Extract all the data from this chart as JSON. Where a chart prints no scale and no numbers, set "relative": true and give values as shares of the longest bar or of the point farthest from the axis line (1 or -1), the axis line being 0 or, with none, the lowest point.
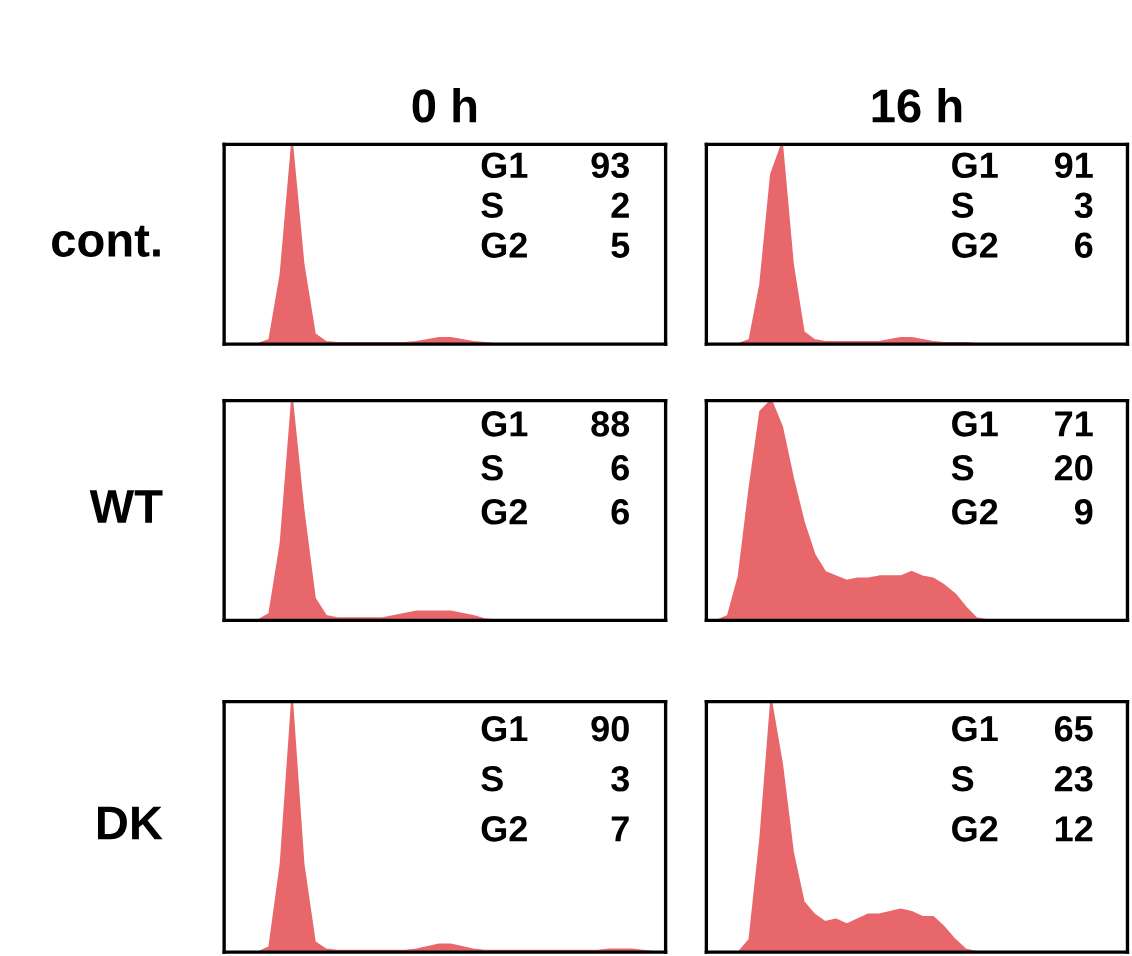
{
  "chart_data": [
    {
      "type": "area",
      "relative": true,
      "title": "0 h",
      "ylabel": "cont.",
      "color": "#e8676b",
      "categories": [
        null,
        null,
        null,
        null,
        null,
        null,
        null,
        null,
        null,
        null,
        null,
        null,
        null,
        null,
        null,
        null,
        null,
        null,
        null,
        null,
        null,
        null,
        null,
        null,
        null,
        null,
        null,
        null,
        null,
        null,
        null,
        null,
        null,
        null,
        null,
        null,
        null,
        null,
        null,
        null
      ],
      "values": [
        0,
        0,
        0,
        0,
        0.02,
        0.35,
        1,
        0.4,
        0.05,
        0.01,
        0.005,
        0.005,
        0.005,
        0.005,
        0.005,
        0.005,
        0.005,
        0.01,
        0.02,
        0.03,
        0.03,
        0.02,
        0.01,
        0.005,
        0,
        0,
        0,
        0,
        0,
        0,
        0,
        0,
        0,
        0,
        0,
        0,
        0,
        0,
        0,
        0
      ],
      "annotations": [
        "G1 93",
        "S 2",
        "G2 5"
      ]
    },
    {
      "type": "area",
      "relative": true,
      "title": "16 h",
      "color": "#e8676b",
      "categories": [
        null,
        null,
        null,
        null,
        null,
        null,
        null,
        null,
        null,
        null,
        null,
        null,
        null,
        null,
        null,
        null,
        null,
        null,
        null,
        null,
        null,
        null,
        null,
        null,
        null,
        null,
        null,
        null,
        null,
        null,
        null,
        null,
        null,
        null,
        null,
        null,
        null,
        null,
        null,
        null
      ],
      "values": [
        0,
        0,
        0,
        0,
        0.02,
        0.3,
        0.85,
        1,
        0.4,
        0.06,
        0.02,
        0.01,
        0.01,
        0.01,
        0.01,
        0.01,
        0.01,
        0.02,
        0.03,
        0.03,
        0.02,
        0.01,
        0.005,
        0.005,
        0.005,
        0,
        0,
        0,
        0,
        0,
        0,
        0,
        0,
        0,
        0,
        0,
        0,
        0,
        0,
        0
      ],
      "annotations": [
        "G1 91",
        "S 3",
        "G2 6"
      ]
    },
    {
      "type": "area",
      "relative": true,
      "ylabel": "WT",
      "color": "#e8676b",
      "categories": [
        null,
        null,
        null,
        null,
        null,
        null,
        null,
        null,
        null,
        null,
        null,
        null,
        null,
        null,
        null,
        null,
        null,
        null,
        null,
        null,
        null,
        null,
        null,
        null,
        null,
        null,
        null,
        null,
        null,
        null,
        null,
        null,
        null,
        null,
        null,
        null,
        null,
        null,
        null,
        null
      ],
      "values": [
        0,
        0,
        0,
        0,
        0.03,
        0.35,
        1,
        0.5,
        0.1,
        0.02,
        0.01,
        0.01,
        0.01,
        0.01,
        0.01,
        0.02,
        0.03,
        0.04,
        0.04,
        0.04,
        0.04,
        0.03,
        0.02,
        0.005,
        0,
        0,
        0,
        0,
        0,
        0,
        0,
        0,
        0,
        0,
        0,
        0,
        0,
        0,
        0,
        0
      ],
      "annotations": [
        "G1 88",
        "S 6",
        "G2 6"
      ]
    },
    {
      "type": "area",
      "relative": true,
      "color": "#e8676b",
      "categories": [
        null,
        null,
        null,
        null,
        null,
        null,
        null,
        null,
        null,
        null,
        null,
        null,
        null,
        null,
        null,
        null,
        null,
        null,
        null,
        null,
        null,
        null,
        null,
        null,
        null,
        null,
        null,
        null,
        null,
        null,
        null,
        null,
        null,
        null,
        null,
        null,
        null,
        null,
        null,
        null
      ],
      "values": [
        0,
        0,
        0.02,
        0.2,
        0.6,
        0.95,
        1,
        0.88,
        0.65,
        0.45,
        0.3,
        0.22,
        0.2,
        0.18,
        0.19,
        0.19,
        0.2,
        0.2,
        0.2,
        0.22,
        0.2,
        0.19,
        0.16,
        0.12,
        0.06,
        0.01,
        0,
        0,
        0,
        0,
        0,
        0,
        0,
        0,
        0,
        0,
        0,
        0,
        0,
        0
      ],
      "annotations": [
        "G1 71",
        "S 20",
        "G2 9"
      ]
    },
    {
      "type": "area",
      "relative": true,
      "ylabel": "DK",
      "color": "#e8676b",
      "categories": [
        null,
        null,
        null,
        null,
        null,
        null,
        null,
        null,
        null,
        null,
        null,
        null,
        null,
        null,
        null,
        null,
        null,
        null,
        null,
        null,
        null,
        null,
        null,
        null,
        null,
        null,
        null,
        null,
        null,
        null,
        null,
        null,
        null,
        null,
        null,
        null,
        null,
        null,
        null,
        null
      ],
      "values": [
        0,
        0,
        0,
        0,
        0.02,
        0.35,
        1,
        0.35,
        0.04,
        0.01,
        0.005,
        0.005,
        0.005,
        0.005,
        0.005,
        0.005,
        0.005,
        0.01,
        0.02,
        0.03,
        0.03,
        0.02,
        0.01,
        0.005,
        0.005,
        0.005,
        0.005,
        0.005,
        0.005,
        0.005,
        0.005,
        0.005,
        0.005,
        0.005,
        0.01,
        0.01,
        0.01,
        0.005,
        0,
        0
      ],
      "annotations": [
        "G1 90",
        "S 3",
        "G2 7"
      ]
    },
    {
      "type": "area",
      "relative": true,
      "color": "#e8676b",
      "categories": [
        null,
        null,
        null,
        null,
        null,
        null,
        null,
        null,
        null,
        null,
        null,
        null,
        null,
        null,
        null,
        null,
        null,
        null,
        null,
        null,
        null,
        null,
        null,
        null,
        null,
        null,
        null,
        null,
        null,
        null,
        null,
        null,
        null,
        null,
        null,
        null,
        null,
        null,
        null,
        null
      ],
      "values": [
        0,
        0,
        0,
        0,
        0.05,
        0.45,
        1,
        0.75,
        0.4,
        0.2,
        0.15,
        0.12,
        0.13,
        0.11,
        0.13,
        0.15,
        0.15,
        0.16,
        0.17,
        0.16,
        0.14,
        0.14,
        0.1,
        0.05,
        0.01,
        0,
        0,
        0,
        0,
        0,
        0,
        0,
        0,
        0,
        0,
        0,
        0,
        0,
        0,
        0
      ],
      "annotations": [
        "G1 65",
        "S 23",
        "G2 12"
      ]
    }
  ]
}
